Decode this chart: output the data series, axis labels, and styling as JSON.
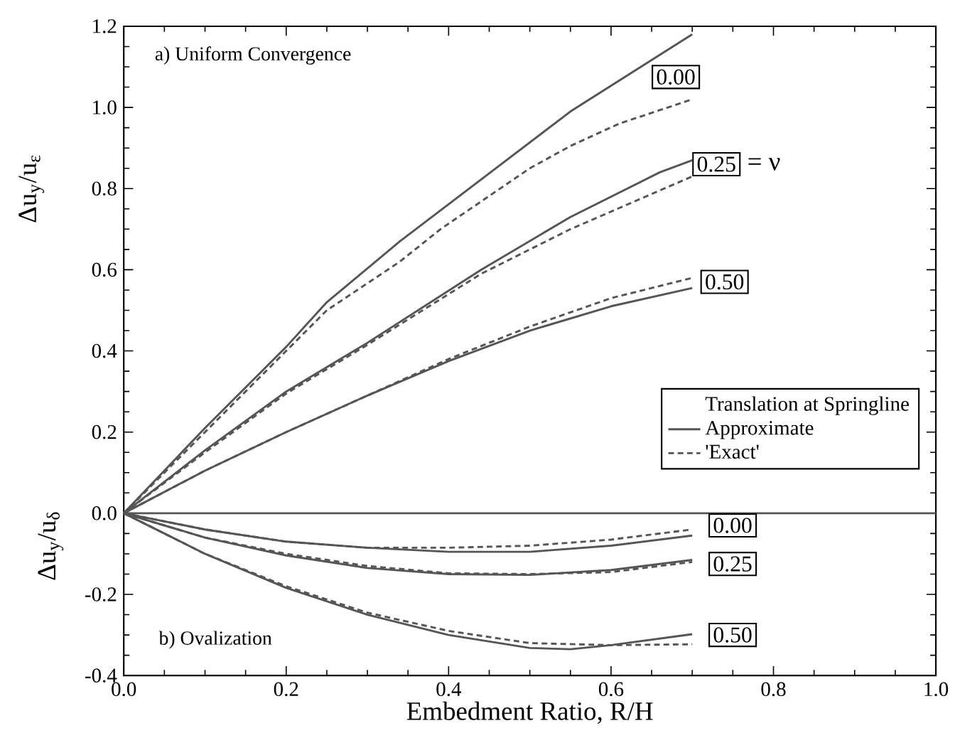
{
  "chart_data": {
    "type": "line",
    "xlabel": "Embedment Ratio, R/H",
    "ylabel": "Δu$_{y}$/u$_{ε}$",
    "xlim": [
      0,
      1
    ],
    "ylim": [
      -0.4,
      1.2
    ],
    "xticks": [
      {
        "value": 0,
        "label": "0.0"
      },
      {
        "value": 0.2,
        "label": "0.2"
      },
      {
        "value": 0.4,
        "label": "0.4"
      },
      {
        "value": 0.6,
        "label": "0.6"
      },
      {
        "value": 0.8,
        "label": "0.8"
      },
      {
        "value": 1,
        "label": "1.0"
      }
    ],
    "yticks": [
      {
        "value": -0.4,
        "label": "-0.4"
      },
      {
        "value": -0.2,
        "label": "-0.2"
      },
      {
        "value": 0,
        "label": "0.0"
      },
      {
        "value": 0.2,
        "label": "0.2"
      },
      {
        "value": 0.4,
        "label": "0.4"
      },
      {
        "value": 0.6,
        "label": "0.6"
      },
      {
        "value": 0.8,
        "label": "0.8"
      },
      {
        "value": 1,
        "label": "1.0"
      },
      {
        "value": 1.2,
        "label": "1.2"
      }
    ],
    "grid": false,
    "legend": "right",
    "legend_title": "Translation at Springline",
    "marker": "none",
    "series": [
      {
        "name": "Approximate",
        "color": "#555555",
        "line_style": "solid",
        "x": [
          0,
          0.1,
          0.2,
          0.25,
          0.34,
          0.445,
          0.55,
          0.7
        ],
        "values": [
          0,
          0.21,
          0.41,
          0.52,
          0.67,
          0.83,
          0.99,
          1.18
        ]
      },
      {
        "name": "'Exact'",
        "color": "#555555",
        "line_style": "dashed",
        "x": [
          0,
          0.1,
          0.2,
          0.25,
          0.34,
          0.39,
          0.5,
          0.55,
          0.61,
          0.7
        ],
        "values": [
          0,
          0.2,
          0.4,
          0.5,
          0.62,
          0.7,
          0.85,
          0.905,
          0.96,
          1.02
        ]
      },
      {
        "color": "#555555",
        "line_style": "solid",
        "x": [
          0,
          0.1,
          0.2,
          0.3,
          0.44,
          0.55,
          0.66,
          0.7
        ],
        "values": [
          0,
          0.155,
          0.3,
          0.42,
          0.6,
          0.73,
          0.84,
          0.87
        ]
      },
      {
        "color": "#555555",
        "line_style": "dashed",
        "x": [
          0,
          0.1,
          0.2,
          0.3,
          0.44,
          0.55,
          0.7
        ],
        "values": [
          0,
          0.15,
          0.295,
          0.415,
          0.59,
          0.7,
          0.83
        ]
      },
      {
        "color": "#555555",
        "line_style": "solid",
        "x": [
          0,
          0.1,
          0.2,
          0.3,
          0.4,
          0.5,
          0.6,
          0.7
        ],
        "values": [
          0,
          0.105,
          0.2,
          0.29,
          0.375,
          0.45,
          0.51,
          0.555
        ]
      },
      {
        "color": "#555555",
        "line_style": "dashed",
        "x": [
          0,
          0.1,
          0.2,
          0.3,
          0.4,
          0.5,
          0.6,
          0.7
        ],
        "values": [
          0,
          0.105,
          0.2,
          0.29,
          0.38,
          0.46,
          0.53,
          0.58
        ]
      },
      {
        "color": "#555555",
        "line_style": "solid",
        "x": [
          0,
          0.1,
          0.2,
          0.3,
          0.4,
          0.5,
          0.6,
          0.7
        ],
        "values": [
          0,
          -0.04,
          -0.07,
          -0.085,
          -0.095,
          -0.095,
          -0.08,
          -0.055
        ]
      },
      {
        "color": "#555555",
        "line_style": "dashed",
        "x": [
          0,
          0.1,
          0.2,
          0.3,
          0.4,
          0.5,
          0.6,
          0.7
        ],
        "values": [
          0,
          -0.04,
          -0.07,
          -0.085,
          -0.085,
          -0.08,
          -0.065,
          -0.04
        ]
      },
      {
        "color": "#555555",
        "line_style": "solid",
        "x": [
          0,
          0.1,
          0.2,
          0.3,
          0.4,
          0.5,
          0.6,
          0.7
        ],
        "values": [
          0,
          -0.06,
          -0.104,
          -0.135,
          -0.15,
          -0.152,
          -0.14,
          -0.115
        ]
      },
      {
        "color": "#555555",
        "line_style": "dashed",
        "x": [
          0,
          0.1,
          0.2,
          0.3,
          0.4,
          0.5,
          0.6,
          0.7
        ],
        "values": [
          0,
          -0.06,
          -0.1,
          -0.13,
          -0.148,
          -0.15,
          -0.145,
          -0.12
        ]
      },
      {
        "color": "#555555",
        "line_style": "solid",
        "x": [
          0,
          0.1,
          0.2,
          0.3,
          0.4,
          0.5,
          0.55,
          0.6,
          0.7
        ],
        "values": [
          0,
          -0.1,
          -0.184,
          -0.25,
          -0.3,
          -0.332,
          -0.335,
          -0.325,
          -0.298
        ]
      },
      {
        "color": "#555555",
        "line_style": "dashed",
        "x": [
          0,
          0.1,
          0.2,
          0.3,
          0.4,
          0.5,
          0.6,
          0.7
        ],
        "values": [
          0,
          -0.1,
          -0.18,
          -0.245,
          -0.29,
          -0.32,
          -0.325,
          -0.323
        ]
      }
    ],
    "ref_lines": [
      {
        "axis": "y",
        "value": 0,
        "color": "#555555",
        "line_style": "solid"
      }
    ],
    "annotations": [
      "a) Uniform Convergence",
      "b) Ovalization",
      "Δu$_{y}$/u$_{δ}$",
      "0.00",
      "0.25",
      "= ν",
      "0.50",
      "0.00",
      "0.25",
      "0.50"
    ]
  }
}
